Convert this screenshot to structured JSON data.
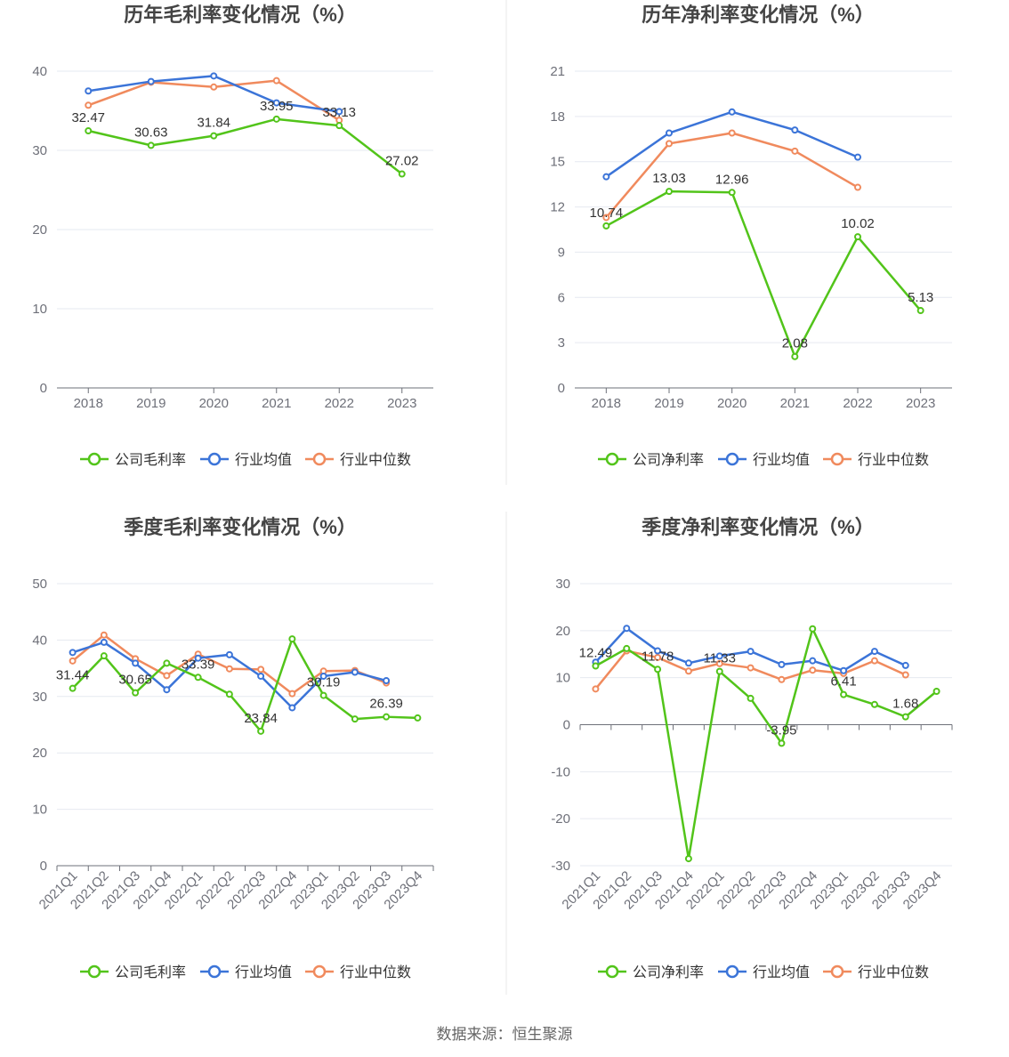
{
  "legend_series_colors": [
    "#52c41a",
    "#3b74d8",
    "#f08a5d"
  ],
  "footer": {
    "source": "数据来源：恒生聚源"
  },
  "chart_data": [
    {
      "type": "line",
      "title": "历年毛利率变化情况（%）",
      "categories": [
        "2018",
        "2019",
        "2020",
        "2021",
        "2022",
        "2023"
      ],
      "ylim": [
        0,
        40
      ],
      "yticks": [
        0,
        10,
        20,
        30,
        40
      ],
      "legend": "bottom",
      "series": [
        {
          "name": "公司毛利率",
          "color": "#52c41a",
          "values": [
            32.47,
            30.63,
            31.84,
            33.95,
            33.13,
            27.02
          ],
          "labels": [
            "32.47",
            "30.63",
            "31.84",
            "33.95",
            "33.13",
            "27.02"
          ]
        },
        {
          "name": "行业均值",
          "color": "#3b74d8",
          "values": [
            37.5,
            38.7,
            39.4,
            36.0,
            34.9,
            null
          ]
        },
        {
          "name": "行业中位数",
          "color": "#f08a5d",
          "values": [
            35.7,
            38.6,
            38.0,
            38.8,
            33.8,
            null
          ]
        }
      ]
    },
    {
      "type": "line",
      "title": "历年净利率变化情况（%）",
      "categories": [
        "2018",
        "2019",
        "2020",
        "2021",
        "2022",
        "2023"
      ],
      "ylim": [
        0,
        21
      ],
      "yticks": [
        0,
        3,
        6,
        9,
        12,
        15,
        18,
        21
      ],
      "legend": "bottom",
      "series": [
        {
          "name": "公司净利率",
          "color": "#52c41a",
          "values": [
            10.74,
            13.03,
            12.96,
            2.08,
            10.02,
            5.13
          ],
          "labels": [
            "10.74",
            "13.03",
            "12.96",
            "2.08",
            "10.02",
            "5.13"
          ]
        },
        {
          "name": "行业均值",
          "color": "#3b74d8",
          "values": [
            14.0,
            16.9,
            18.3,
            17.1,
            15.3,
            null
          ]
        },
        {
          "name": "行业中位数",
          "color": "#f08a5d",
          "values": [
            11.3,
            16.2,
            16.9,
            15.7,
            13.3,
            null
          ]
        }
      ]
    },
    {
      "type": "line",
      "title": "季度毛利率变化情况（%）",
      "categories": [
        "2021Q1",
        "2021Q2",
        "2021Q3",
        "2021Q4",
        "2022Q1",
        "2022Q2",
        "2022Q3",
        "2022Q4",
        "2023Q1",
        "2023Q2",
        "2023Q3",
        "2023Q4"
      ],
      "ylim": [
        0,
        50
      ],
      "yticks": [
        0,
        10,
        20,
        30,
        40,
        50
      ],
      "legend": "bottom",
      "series": [
        {
          "name": "公司毛利率",
          "color": "#52c41a",
          "values": [
            31.44,
            37.2,
            30.65,
            35.9,
            33.39,
            30.4,
            23.84,
            40.2,
            30.19,
            26.0,
            26.39,
            26.2
          ],
          "labels": [
            "31.44",
            "",
            "30.65",
            "",
            "33.39",
            "",
            "23.84",
            "",
            "30.19",
            "",
            "26.39",
            ""
          ]
        },
        {
          "name": "行业均值",
          "color": "#3b74d8",
          "values": [
            37.8,
            39.6,
            35.9,
            31.2,
            36.8,
            37.4,
            33.6,
            28.0,
            33.6,
            34.3,
            32.8,
            null
          ]
        },
        {
          "name": "行业中位数",
          "color": "#f08a5d",
          "values": [
            36.3,
            40.9,
            36.7,
            33.7,
            37.5,
            34.9,
            34.8,
            30.5,
            34.5,
            34.6,
            32.4,
            null
          ]
        }
      ]
    },
    {
      "type": "line",
      "title": "季度净利率变化情况（%）",
      "categories": [
        "2021Q1",
        "2021Q2",
        "2021Q3",
        "2021Q4",
        "2022Q1",
        "2022Q2",
        "2022Q3",
        "2022Q4",
        "2023Q1",
        "2023Q2",
        "2023Q3",
        "2023Q4"
      ],
      "ylim": [
        -30,
        30
      ],
      "yticks": [
        -30,
        -20,
        -10,
        0,
        10,
        20,
        30
      ],
      "legend": "bottom",
      "series": [
        {
          "name": "公司净利率",
          "color": "#52c41a",
          "values": [
            12.49,
            16.2,
            11.78,
            -28.5,
            11.33,
            5.6,
            -3.95,
            20.4,
            6.41,
            4.3,
            1.68,
            7.1
          ],
          "labels": [
            "12.49",
            "",
            "11.78",
            "",
            "11.33",
            "",
            "-3.95",
            "",
            "6.41",
            "",
            "1.68",
            ""
          ]
        },
        {
          "name": "行业均值",
          "color": "#3b74d8",
          "values": [
            13.3,
            20.5,
            15.7,
            13.1,
            14.6,
            15.6,
            12.8,
            13.6,
            11.5,
            15.6,
            12.6,
            null
          ]
        },
        {
          "name": "行业中位数",
          "color": "#f08a5d",
          "values": [
            7.6,
            15.7,
            14.3,
            11.4,
            13.0,
            12.1,
            9.6,
            11.6,
            10.9,
            13.6,
            10.6,
            null
          ]
        }
      ]
    }
  ]
}
